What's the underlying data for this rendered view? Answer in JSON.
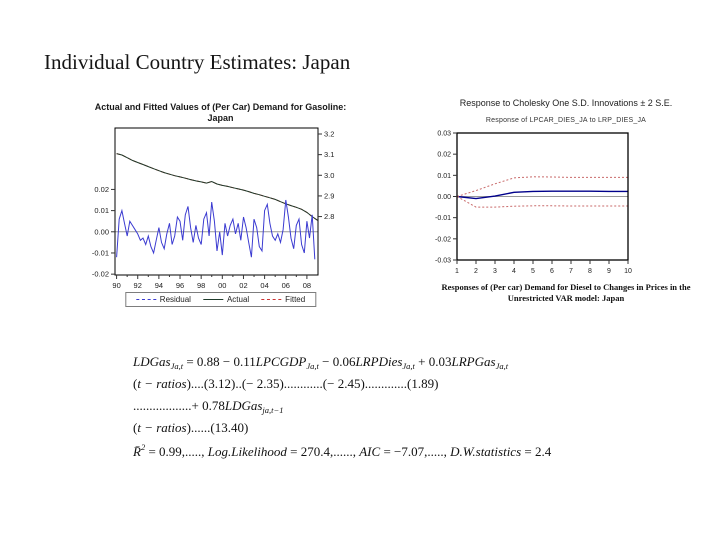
{
  "slide": {
    "title": "Individual Country Estimates: Japan"
  },
  "chart_data": [
    {
      "type": "line",
      "title": "Actual and Fitted Values of (Per Car) Demand for Gasoline: Japan",
      "title_line1": "Actual and Fitted Values of (Per Car) Demand for Gasoline:",
      "title_line2": "Japan",
      "x_tick_labels": [
        "90",
        "92",
        "94",
        "96",
        "98",
        "00",
        "02",
        "04",
        "06",
        "08"
      ],
      "x_tick_years": [
        1990,
        1992,
        1994,
        1996,
        1998,
        2000,
        2002,
        2004,
        2006,
        2008
      ],
      "x_range": [
        1989.85,
        2009.05
      ],
      "left_axis": {
        "tick_labels": [
          "0.02",
          "0.01",
          "0.00",
          "-0.01",
          "-0.02"
        ],
        "tick_values": [
          0.02,
          0.01,
          0,
          -0.01,
          -0.02
        ],
        "range": [
          -0.0204,
          0.049
        ]
      },
      "right_axis": {
        "tick_labels": [
          "3.2",
          "3.1",
          "3.0",
          "2.9",
          "2.8"
        ],
        "tick_values": [
          3.2,
          3.1,
          3.0,
          2.9,
          2.8
        ],
        "range": [
          2.517,
          3.229
        ]
      },
      "zero_line_color": "#9a9a9a",
      "frame_color": "#000000",
      "legend": [
        {
          "label": "Residual",
          "color": "#3b3bd1",
          "dash": "2,2"
        },
        {
          "label": "Actual",
          "color": "#1f3b2b",
          "dash": ""
        },
        {
          "label": "Fitted",
          "color": "#cc3333",
          "dash": "4,2"
        }
      ],
      "series": {
        "residual": {
          "axis": "left",
          "x_start": 1990,
          "x_step": 0.25,
          "color": "#3b3bd1",
          "values": [
            -0.012,
            0.006,
            0.01,
            0.004,
            -0.002,
            0.005,
            0.003,
            0.001,
            -0.001,
            -0.004,
            -0.003,
            -0.006,
            -0.002,
            -0.007,
            -0.01,
            -0.004,
            0.002,
            -0.005,
            -0.008,
            -0.001,
            0.004,
            -0.006,
            -0.002,
            0.007,
            0.005,
            -0.004,
            0.008,
            0.012,
            0.002,
            -0.005,
            0.003,
            -0.003,
            -0.006,
            0.006,
            0.009,
            -0.002,
            0.014,
            0.005,
            -0.009,
            0.0,
            -0.011,
            0.004,
            -0.002,
            0.003,
            0.006,
            -0.001,
            0.004,
            -0.004,
            0.007,
            0.002,
            -0.005,
            -0.012,
            0.006,
            0.002,
            -0.007,
            -0.009,
            0.01,
            0.013,
            0.004,
            -0.002,
            -0.004,
            -0.001,
            -0.005,
            0.001,
            0.015,
            0.007,
            -0.003,
            -0.008,
            0.003,
            0.006,
            -0.006,
            -0.01,
            0.005,
            -0.003,
            0.008,
            -0.013
          ]
        },
        "actual": {
          "axis": "right",
          "x_start": 1990,
          "x_step": 0.5,
          "color": "#1f3b2b",
          "values": [
            3.105,
            3.098,
            3.085,
            3.072,
            3.062,
            3.052,
            3.042,
            3.032,
            3.022,
            3.013,
            3.005,
            2.998,
            2.992,
            2.986,
            2.979,
            2.973,
            2.968,
            2.962,
            2.97,
            2.958,
            2.951,
            2.946,
            2.94,
            2.934,
            2.928,
            2.921,
            2.912,
            2.906,
            2.898,
            2.891,
            2.883,
            2.872,
            2.862,
            2.853,
            2.845,
            2.835,
            2.82,
            2.8,
            2.782
          ]
        },
        "fitted": {
          "axis": "right",
          "x_start": 1990,
          "x_step": 0.5,
          "color": "#cc3333",
          "dash": "4,2",
          "values": [
            3.105,
            3.098,
            3.085,
            3.072,
            3.062,
            3.052,
            3.042,
            3.032,
            3.022,
            3.013,
            3.005,
            2.998,
            2.992,
            2.986,
            2.979,
            2.973,
            2.968,
            2.962,
            2.97,
            2.958,
            2.951,
            2.946,
            2.94,
            2.934,
            2.928,
            2.921,
            2.912,
            2.906,
            2.898,
            2.891,
            2.883,
            2.872,
            2.862,
            2.853,
            2.845,
            2.835,
            2.82,
            2.8,
            2.782
          ]
        }
      }
    },
    {
      "type": "line",
      "title": "Response to Cholesky One S.D. Innovations ± 2 S.E.",
      "subtitle": "Response of LPCAR_DIES_JA to LRP_DIES_JA",
      "caption_line1": "Responses of (Per car) Demand for Diesel to Changes in Prices in the",
      "caption_line2": "Unrestricted VAR model: Japan",
      "x": [
        1,
        2,
        3,
        4,
        5,
        6,
        7,
        8,
        9,
        10
      ],
      "ylim": [
        -0.03,
        0.03
      ],
      "y_tick_labels": [
        "0.03",
        "0.02",
        "0.01",
        "0.00",
        "-0.01",
        "-0.02",
        "-0.03"
      ],
      "y_tick_values": [
        0.03,
        0.02,
        0.01,
        0,
        -0.01,
        -0.02,
        -0.03
      ],
      "zero_line_color": "#9a9a9a",
      "frame_color": "#000000",
      "series": [
        {
          "name": "response",
          "color": "#00008b",
          "dash": "",
          "values": [
            0,
            -0.001,
            0.0002,
            0.002,
            0.0024,
            0.0025,
            0.0025,
            0.0025,
            0.0024,
            0.0024
          ]
        },
        {
          "name": "upper_band",
          "color": "#c96a6a",
          "dash": "2,2",
          "values": [
            0,
            0.0028,
            0.006,
            0.0088,
            0.0093,
            0.0092,
            0.009,
            0.009,
            0.009,
            0.009
          ]
        },
        {
          "name": "lower_band",
          "color": "#c96a6a",
          "dash": "2,2",
          "values": [
            0,
            -0.005,
            -0.005,
            -0.0046,
            -0.0044,
            -0.0044,
            -0.0045,
            -0.0045,
            -0.0045,
            -0.0045
          ]
        }
      ]
    }
  ],
  "equations": {
    "lines": [
      [
        [
          "i",
          "LDGas"
        ],
        [
          "sub",
          "Ja,t"
        ],
        [
          "n",
          " = 0.88 − 0.11"
        ],
        [
          "i",
          "LPCGDP"
        ],
        [
          "sub",
          "Ja,t"
        ],
        [
          "n",
          " − 0.06"
        ],
        [
          "i",
          "LRPDies"
        ],
        [
          "sub",
          "Ja,t"
        ],
        [
          "n",
          " + 0.03"
        ],
        [
          "i",
          "LRPGas"
        ],
        [
          "sub",
          "Ja,t"
        ]
      ],
      [
        [
          "n",
          "("
        ],
        [
          "i",
          "t − ratios"
        ],
        [
          "n",
          ")....(3.12)..(− 2.35)............(− 2.45).............(1.89)"
        ]
      ],
      [
        [
          "n",
          "..................+ 0.78"
        ],
        [
          "i",
          "LDGas"
        ],
        [
          "sub",
          "ja,t−1"
        ]
      ],
      [
        [
          "n",
          "("
        ],
        [
          "i",
          "t − ratios"
        ],
        [
          "n",
          ")......(13.40)"
        ]
      ],
      [
        [
          "i",
          "R̄"
        ],
        [
          "sup",
          "2"
        ],
        [
          "n",
          " = 0.99,....., "
        ],
        [
          "i",
          "Log.Likelihood"
        ],
        [
          "n",
          " = 270.4,......, "
        ],
        [
          "i",
          "AIC"
        ],
        [
          "n",
          " = −7.07,....., "
        ],
        [
          "i",
          "D.W.statistics"
        ],
        [
          "n",
          " = 2.4"
        ]
      ]
    ]
  }
}
